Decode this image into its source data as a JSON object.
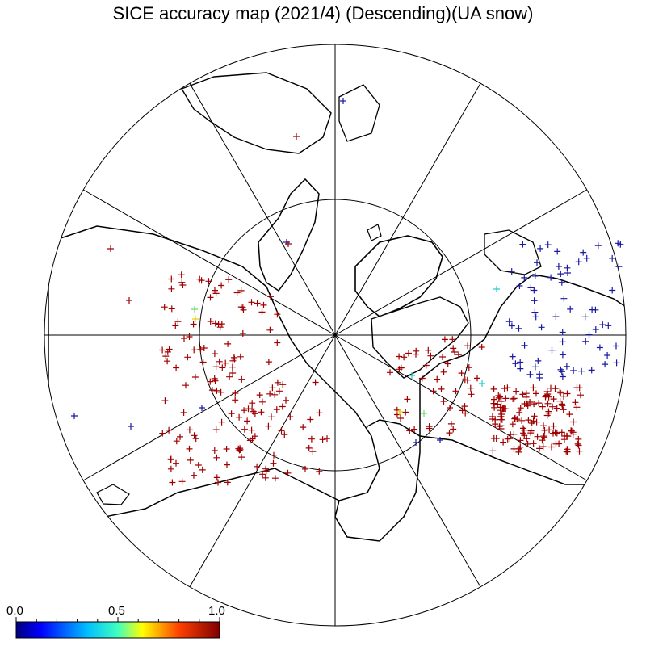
{
  "title": "SICE accuracy map (2021/4)  (Descending)(UA snow)",
  "map": {
    "projection": "north polar stereographic",
    "meridian_lines": 12,
    "inner_circle": true,
    "land_color": "#ffffff",
    "coastline_color": "#000000"
  },
  "colorbar": {
    "min_label": "0.0",
    "mid_label": "0.5",
    "max_label": "1.0",
    "colormap": [
      "#00007f",
      "#0000ff",
      "#007fff",
      "#00ffff",
      "#7fff7f",
      "#ffff00",
      "#ff7f00",
      "#ff0000",
      "#7f0000"
    ]
  },
  "marker_colors": {
    "high": "#a00000",
    "low": "#1a1aa0",
    "mid_cyan": "#22cccc",
    "mid_green": "#66dd66",
    "mid_yellow": "#e8d000"
  }
}
